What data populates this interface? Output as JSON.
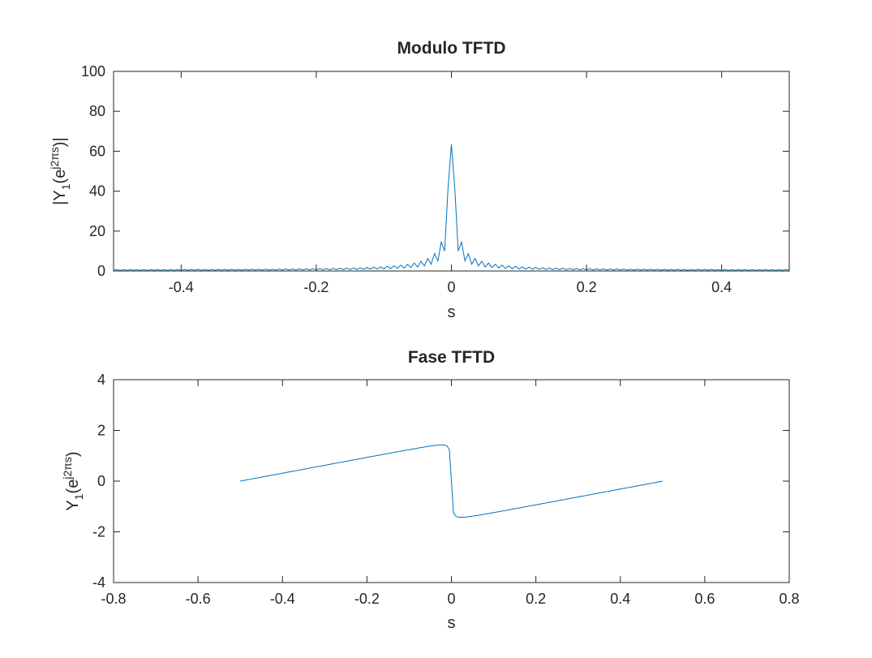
{
  "chart_data": [
    {
      "type": "line",
      "title": "Modulo TFTD",
      "xlabel": "s",
      "ylabel": {
        "pre": "|Y",
        "sub": "1",
        "mid": "(e",
        "sup": "j2πs",
        "post": ")|"
      },
      "xlim": [
        -0.5,
        0.5
      ],
      "ylim": [
        0,
        100
      ],
      "xticks": [
        -0.4,
        -0.2,
        0,
        0.2,
        0.4
      ],
      "xtick_labels": [
        "-0.4",
        "-0.2",
        "0",
        "0.2",
        "0.4"
      ],
      "yticks": [
        0,
        20,
        40,
        60,
        80,
        100
      ],
      "ytick_labels": [
        "0",
        "20",
        "40",
        "60",
        "80",
        "100"
      ],
      "grid": false,
      "line_color": "#0072BD",
      "series": [
        {
          "generator": "abs(sum_{n=0}^{99} 0.99^n e^{-j2πsn})",
          "a": 0.99,
          "N": 100,
          "s_start": -0.5,
          "s_end": 0.5,
          "samples": 201
        }
      ]
    },
    {
      "type": "line",
      "title": "Fase TFTD",
      "xlabel": "s",
      "ylabel": {
        "pre": "Y",
        "sub": "1",
        "mid": "(e",
        "sup": "j2πs",
        "post": ")"
      },
      "xlim": [
        -0.8,
        0.8
      ],
      "ylim": [
        -4,
        4
      ],
      "xticks": [
        -0.8,
        -0.6,
        -0.4,
        -0.2,
        0,
        0.2,
        0.4,
        0.6,
        0.8
      ],
      "xtick_labels": [
        "-0.8",
        "-0.6",
        "-0.4",
        "-0.2",
        "0",
        "0.2",
        "0.4",
        "0.6",
        "0.8"
      ],
      "yticks": [
        -4,
        -2,
        0,
        2,
        4
      ],
      "ytick_labels": [
        "-4",
        "-2",
        "0",
        "2",
        "4"
      ],
      "grid": false,
      "line_color": "#0072BD",
      "series": [
        {
          "generator": "angle(sum_{n=0}^{99} 0.99^n e^{-j2πsn})",
          "a": 0.99,
          "N": 100,
          "s_start": -0.5,
          "s_end": 0.5,
          "samples": 201
        }
      ]
    }
  ]
}
